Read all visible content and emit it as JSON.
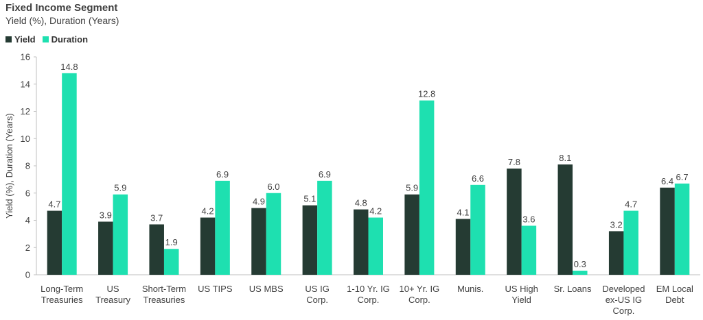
{
  "title": "Fixed Income Segment",
  "subtitle": "Yield (%), Duration (Years)",
  "colors": {
    "yield": "#253b33",
    "duration": "#1ee0b0",
    "axis": "#bfbfbf",
    "text": "#404040"
  },
  "chart_data": {
    "type": "bar",
    "ylabel": "Yield (%), Duration (Years)",
    "ylim": [
      0,
      16
    ],
    "yticks": [
      0,
      2,
      4,
      6,
      8,
      10,
      12,
      14,
      16
    ],
    "grid": false,
    "legend_position": "top-left",
    "categories": [
      [
        "Long-Term",
        "Treasuries"
      ],
      [
        "US",
        "Treasury"
      ],
      [
        "Short-Term",
        "Treasuries"
      ],
      [
        "US TIPS"
      ],
      [
        "US MBS"
      ],
      [
        "US IG",
        "Corp."
      ],
      [
        "1-10 Yr. IG",
        "Corp."
      ],
      [
        "10+ Yr. IG",
        "Corp."
      ],
      [
        "Munis."
      ],
      [
        "US High",
        "Yield"
      ],
      [
        "Sr. Loans"
      ],
      [
        "Developed",
        "ex-US IG",
        "Corp."
      ],
      [
        "EM Local",
        "Debt"
      ]
    ],
    "series": [
      {
        "name": "Yield",
        "values": [
          4.7,
          3.9,
          3.7,
          4.2,
          4.9,
          5.1,
          4.8,
          5.9,
          4.1,
          7.8,
          8.1,
          3.2,
          6.4
        ],
        "labels": [
          "4.7",
          "3.9",
          "3.7",
          "4.2",
          "4.9",
          "5.1",
          "4.8",
          "5.9",
          "4.1",
          "7.8",
          "8.1",
          "3.2",
          "6.4"
        ]
      },
      {
        "name": "Duration",
        "values": [
          14.8,
          5.9,
          1.9,
          6.9,
          6.0,
          6.9,
          4.2,
          12.8,
          6.6,
          3.6,
          0.3,
          4.7,
          6.7
        ],
        "labels": [
          "14.8",
          "5.9",
          "1.9",
          "6.9",
          "6.0",
          "6.9",
          "4.2",
          "12.8",
          "6.6",
          "3.6",
          "0.3",
          "4.7",
          "6.7"
        ]
      }
    ]
  }
}
